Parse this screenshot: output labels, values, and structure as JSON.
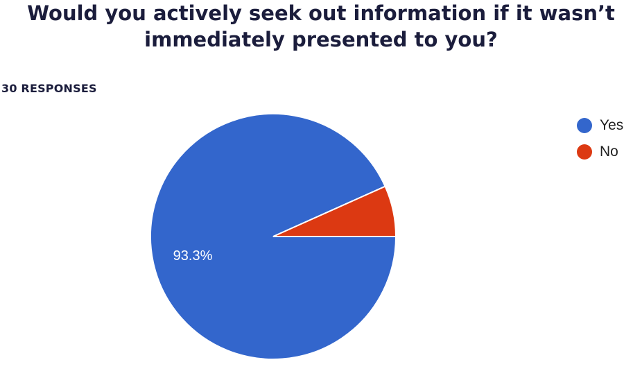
{
  "header": {
    "title_line1": "Would you actively seek out information if it wasn’t",
    "title_line2": "immediately presented to you?",
    "responses": "30 RESPONSES"
  },
  "chart_data": {
    "type": "pie",
    "title": "Would you actively seek out information if it wasn’t immediately presented to you?",
    "subtitle": "30 RESPONSES",
    "categories": [
      "Yes",
      "No"
    ],
    "values": [
      93.3,
      6.7
    ],
    "counts": [
      28,
      2
    ],
    "colors": [
      "#3366cc",
      "#dc3912"
    ],
    "data_labels": [
      "93.3%",
      ""
    ],
    "legend_position": "top-right"
  }
}
